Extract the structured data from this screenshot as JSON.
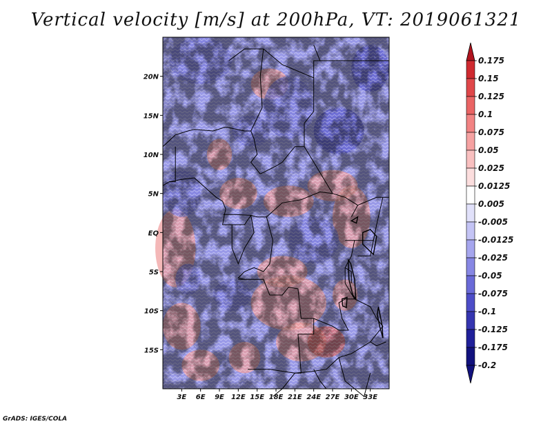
{
  "title": "Vertical velocity [m/s] at 200hPa, VT: 2019061321",
  "credit": "GrADS: IGES/COLA",
  "map": {
    "lon_range": [
      0,
      36
    ],
    "lat_range": [
      -20,
      25
    ],
    "lat_ticks": [
      "20N",
      "15N",
      "10N",
      "5N",
      "EQ",
      "5S",
      "10S",
      "15S"
    ],
    "lat_tick_values": [
      20,
      15,
      10,
      5,
      0,
      -5,
      -10,
      -15
    ],
    "lon_ticks": [
      "3E",
      "6E",
      "9E",
      "12E",
      "15E",
      "18E",
      "21E",
      "24E",
      "27E",
      "30E",
      "33E"
    ],
    "lon_tick_values": [
      3,
      6,
      9,
      12,
      15,
      18,
      21,
      24,
      27,
      30,
      33
    ]
  },
  "colorbar": {
    "levels": [
      "0.175",
      "0.15",
      "0.125",
      "0.1",
      "0.075",
      "0.05",
      "0.025",
      "0.0125",
      "0.005",
      "-0.005",
      "-0.0125",
      "-0.025",
      "-0.05",
      "-0.075",
      "-0.1",
      "-0.125",
      "-0.175",
      "-0.2"
    ],
    "colors": [
      "#b0141e",
      "#cf2a30",
      "#e0474a",
      "#ea6464",
      "#f28383",
      "#f6a2a2",
      "#f9c0c0",
      "#fcdede",
      "#ffffff",
      "#e1e1fa",
      "#c4c4f5",
      "#a6a6ee",
      "#8787e4",
      "#6a6ad8",
      "#4d4dc8",
      "#3535b0",
      "#20209a",
      "#12127e"
    ]
  }
}
